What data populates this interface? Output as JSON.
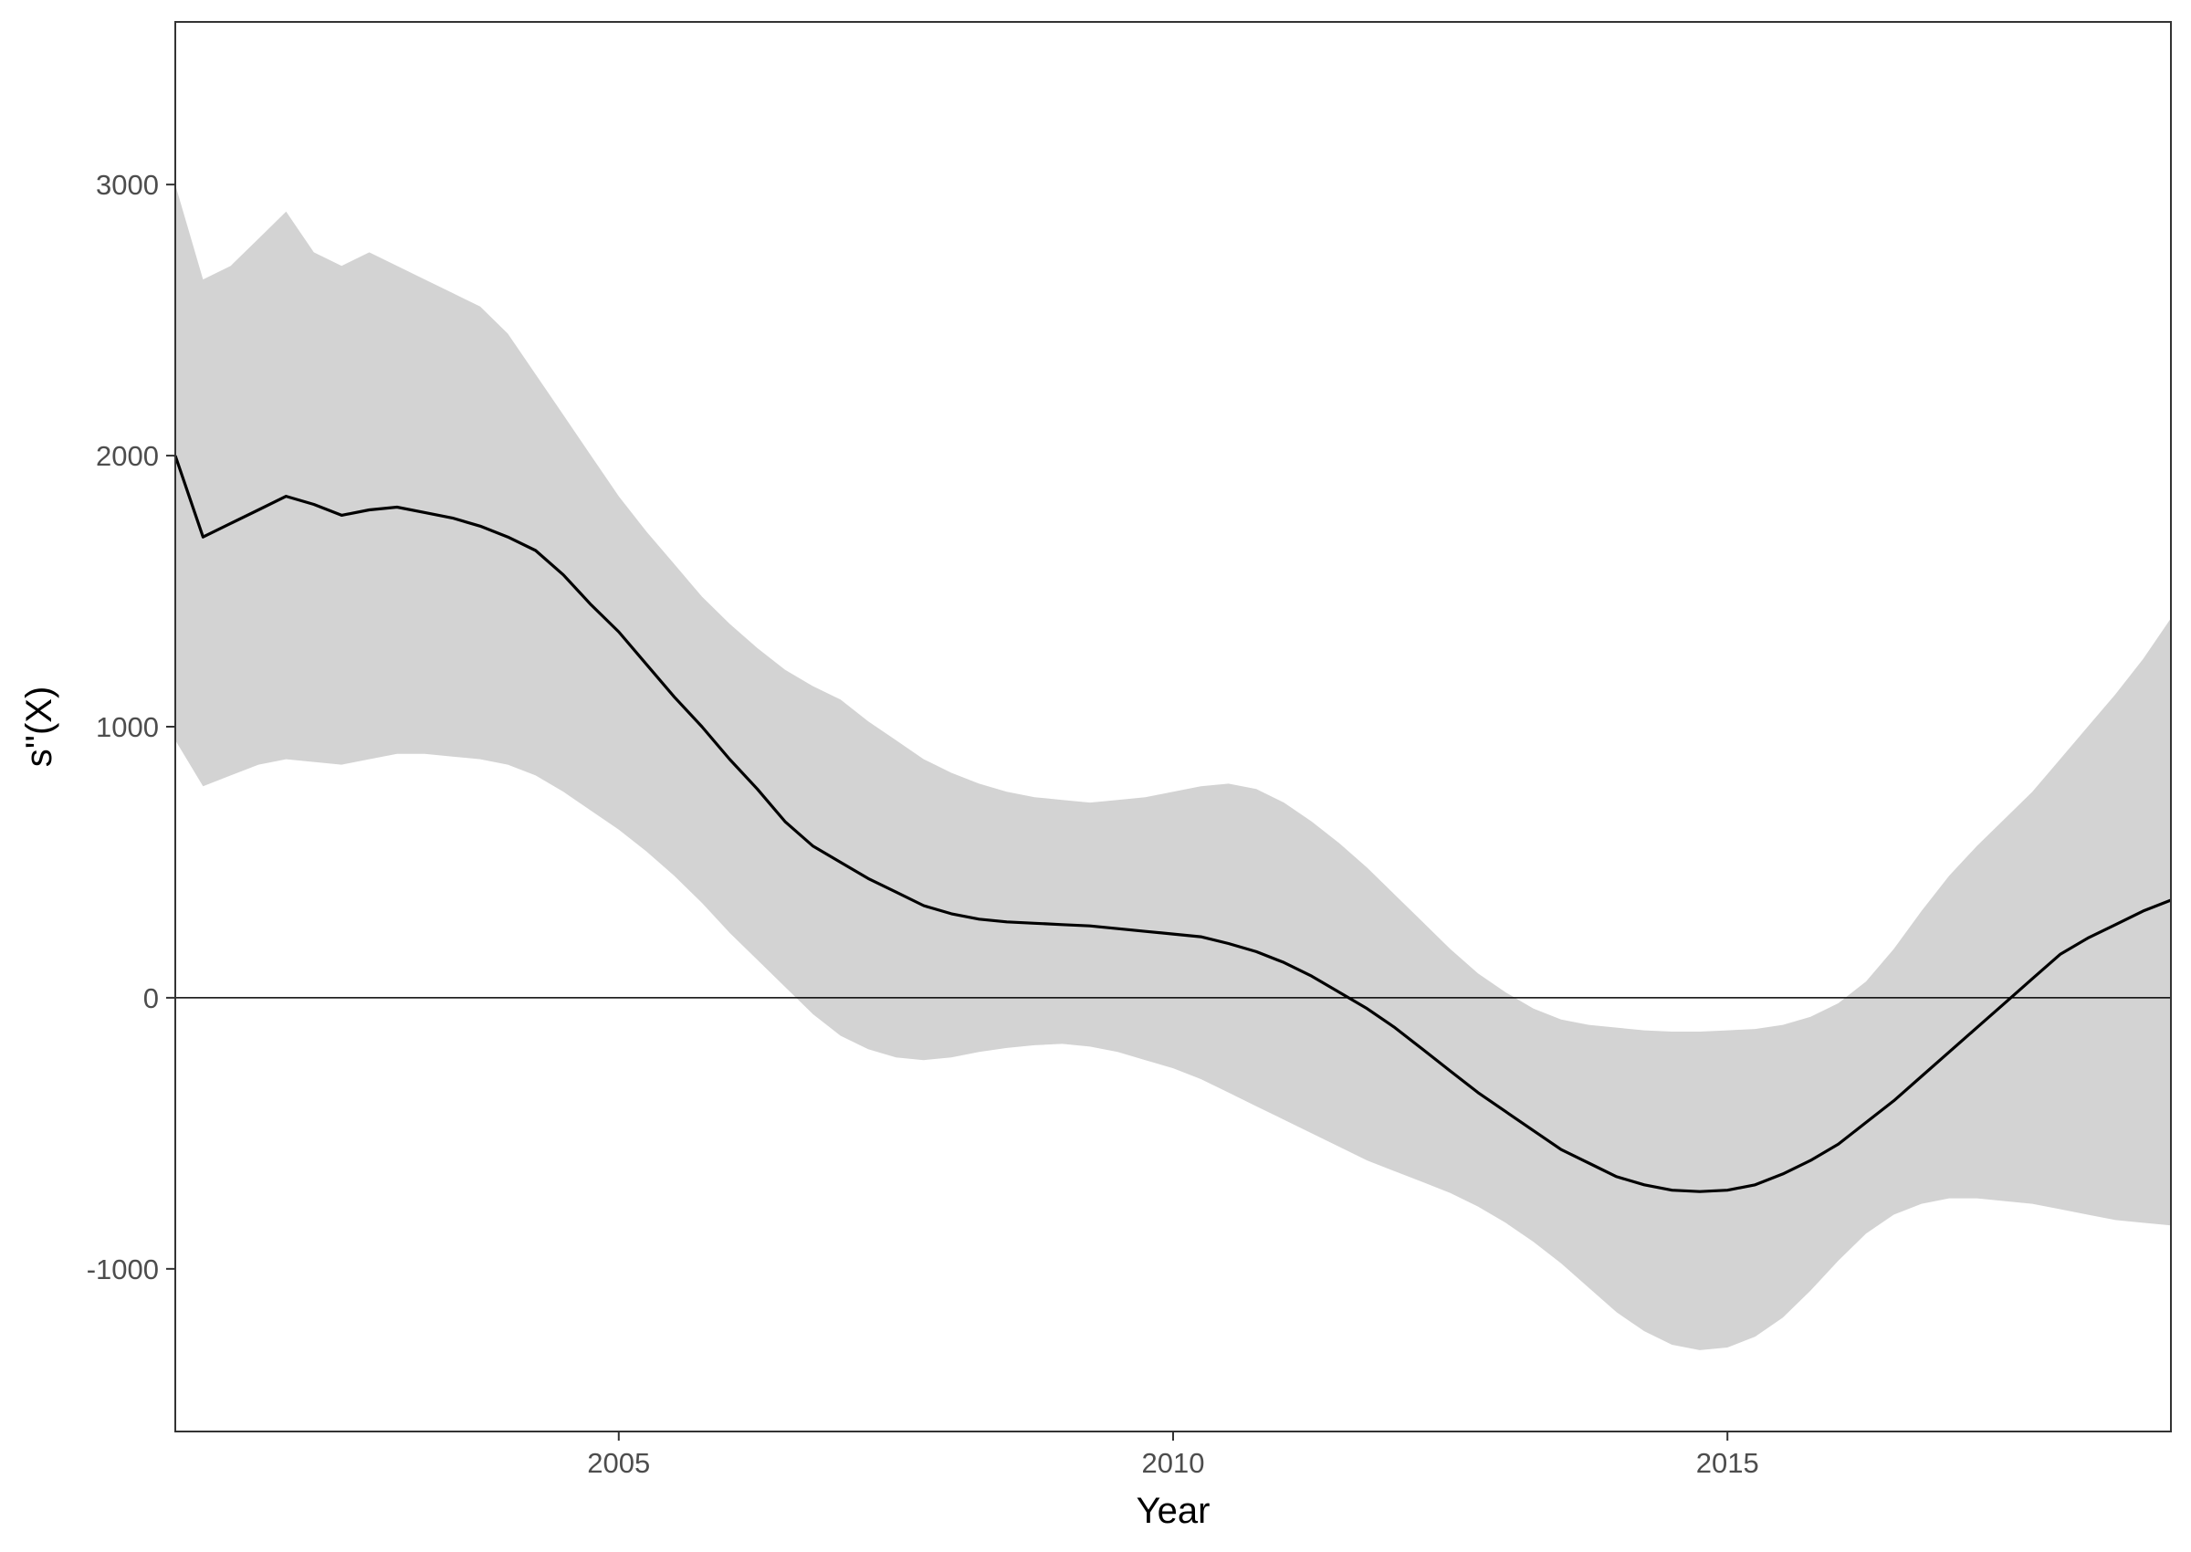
{
  "chart_data": {
    "type": "line",
    "title": "",
    "xlabel": "Year",
    "ylabel": "s''(X)",
    "xlim": [
      2001.0,
      2019.0
    ],
    "ylim": [
      -1600,
      3600
    ],
    "x_ticks": [
      2005,
      2010,
      2015
    ],
    "y_ticks": [
      -1000,
      0,
      1000,
      2000,
      3000
    ],
    "reference_line": {
      "y": 0
    },
    "grid": false,
    "legend": "none",
    "colors": {
      "line": "#000000",
      "ribbon": "#d3d3d3",
      "panel_border": "#333333"
    },
    "series": [
      {
        "role": "estimate",
        "x": [
          2001.0,
          2001.25,
          2001.5,
          2001.75,
          2002.0,
          2002.25,
          2002.5,
          2002.75,
          2003.0,
          2003.25,
          2003.5,
          2003.75,
          2004.0,
          2004.25,
          2004.5,
          2004.75,
          2005.0,
          2005.25,
          2005.5,
          2005.75,
          2006.0,
          2006.25,
          2006.5,
          2006.75,
          2007.0,
          2007.25,
          2007.5,
          2007.75,
          2008.0,
          2008.25,
          2008.5,
          2008.75,
          2009.0,
          2009.25,
          2009.5,
          2009.75,
          2010.0,
          2010.25,
          2010.5,
          2010.75,
          2011.0,
          2011.25,
          2011.5,
          2011.75,
          2012.0,
          2012.25,
          2012.5,
          2012.75,
          2013.0,
          2013.25,
          2013.5,
          2013.75,
          2014.0,
          2014.25,
          2014.5,
          2014.75,
          2015.0,
          2015.25,
          2015.5,
          2015.75,
          2016.0,
          2016.25,
          2016.5,
          2016.75,
          2017.0,
          2017.25,
          2017.5,
          2017.75,
          2018.0,
          2018.25,
          2018.5,
          2018.75,
          2019.0
        ],
        "values": [
          2000,
          1700,
          1750,
          1800,
          1850,
          1820,
          1780,
          1800,
          1810,
          1790,
          1770,
          1740,
          1700,
          1650,
          1560,
          1450,
          1350,
          1230,
          1110,
          1000,
          880,
          770,
          650,
          560,
          500,
          440,
          390,
          340,
          310,
          290,
          280,
          275,
          270,
          265,
          255,
          245,
          235,
          225,
          200,
          170,
          130,
          80,
          20,
          -40,
          -110,
          -190,
          -270,
          -350,
          -420,
          -490,
          -560,
          -610,
          -660,
          -690,
          -710,
          -715,
          -710,
          -690,
          -650,
          -600,
          -540,
          -460,
          -380,
          -290,
          -200,
          -110,
          -20,
          70,
          160,
          220,
          270,
          320,
          360
        ]
      },
      {
        "role": "upper_bound",
        "x": [
          2001.0,
          2001.25,
          2001.5,
          2001.75,
          2002.0,
          2002.25,
          2002.5,
          2002.75,
          2003.0,
          2003.25,
          2003.5,
          2003.75,
          2004.0,
          2004.25,
          2004.5,
          2004.75,
          2005.0,
          2005.25,
          2005.5,
          2005.75,
          2006.0,
          2006.25,
          2006.5,
          2006.75,
          2007.0,
          2007.25,
          2007.5,
          2007.75,
          2008.0,
          2008.25,
          2008.5,
          2008.75,
          2009.0,
          2009.25,
          2009.5,
          2009.75,
          2010.0,
          2010.25,
          2010.5,
          2010.75,
          2011.0,
          2011.25,
          2011.5,
          2011.75,
          2012.0,
          2012.25,
          2012.5,
          2012.75,
          2013.0,
          2013.25,
          2013.5,
          2013.75,
          2014.0,
          2014.25,
          2014.5,
          2014.75,
          2015.0,
          2015.25,
          2015.5,
          2015.75,
          2016.0,
          2016.25,
          2016.5,
          2016.75,
          2017.0,
          2017.25,
          2017.5,
          2017.75,
          2018.0,
          2018.25,
          2018.5,
          2018.75,
          2019.0
        ],
        "values": [
          3000,
          2650,
          2700,
          2800,
          2900,
          2750,
          2700,
          2750,
          2700,
          2650,
          2600,
          2550,
          2450,
          2300,
          2150,
          2000,
          1850,
          1720,
          1600,
          1480,
          1380,
          1290,
          1210,
          1150,
          1100,
          1020,
          950,
          880,
          830,
          790,
          760,
          740,
          730,
          720,
          730,
          740,
          760,
          780,
          790,
          770,
          720,
          650,
          570,
          480,
          380,
          280,
          180,
          90,
          20,
          -40,
          -80,
          -100,
          -110,
          -120,
          -125,
          -125,
          -120,
          -115,
          -100,
          -70,
          -20,
          60,
          180,
          320,
          450,
          560,
          660,
          760,
          880,
          1000,
          1120,
          1250,
          1400
        ]
      },
      {
        "role": "lower_bound",
        "x": [
          2001.0,
          2001.25,
          2001.5,
          2001.75,
          2002.0,
          2002.25,
          2002.5,
          2002.75,
          2003.0,
          2003.25,
          2003.5,
          2003.75,
          2004.0,
          2004.25,
          2004.5,
          2004.75,
          2005.0,
          2005.25,
          2005.5,
          2005.75,
          2006.0,
          2006.25,
          2006.5,
          2006.75,
          2007.0,
          2007.25,
          2007.5,
          2007.75,
          2008.0,
          2008.25,
          2008.5,
          2008.75,
          2009.0,
          2009.25,
          2009.5,
          2009.75,
          2010.0,
          2010.25,
          2010.5,
          2010.75,
          2011.0,
          2011.25,
          2011.5,
          2011.75,
          2012.0,
          2012.25,
          2012.5,
          2012.75,
          2013.0,
          2013.25,
          2013.5,
          2013.75,
          2014.0,
          2014.25,
          2014.5,
          2014.75,
          2015.0,
          2015.25,
          2015.5,
          2015.75,
          2016.0,
          2016.25,
          2016.5,
          2016.75,
          2017.0,
          2017.25,
          2017.5,
          2017.75,
          2018.0,
          2018.25,
          2018.5,
          2018.75,
          2019.0
        ],
        "values": [
          950,
          780,
          820,
          860,
          880,
          870,
          860,
          880,
          900,
          900,
          890,
          880,
          860,
          820,
          760,
          690,
          620,
          540,
          450,
          350,
          240,
          140,
          40,
          -60,
          -140,
          -190,
          -220,
          -230,
          -220,
          -200,
          -185,
          -175,
          -170,
          -180,
          -200,
          -230,
          -260,
          -300,
          -350,
          -400,
          -450,
          -500,
          -550,
          -600,
          -640,
          -680,
          -720,
          -770,
          -830,
          -900,
          -980,
          -1070,
          -1160,
          -1230,
          -1280,
          -1300,
          -1290,
          -1250,
          -1180,
          -1080,
          -970,
          -870,
          -800,
          -760,
          -740,
          -740,
          -750,
          -760,
          -780,
          -800,
          -820,
          -830,
          -840
        ]
      }
    ]
  }
}
